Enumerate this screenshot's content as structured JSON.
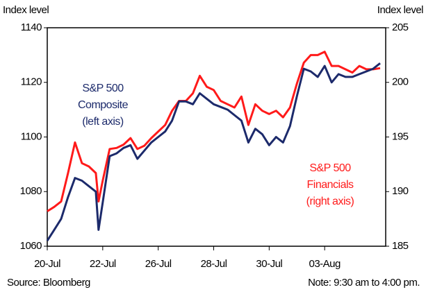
{
  "chart_data": {
    "type": "line",
    "y_label": "Index level",
    "y2_label": "Index level",
    "x": [
      0,
      0.25,
      0.5,
      0.75,
      1.0,
      1.25,
      1.5,
      1.75,
      1.85,
      2.0,
      2.25,
      2.5,
      2.75,
      3.0,
      3.25,
      3.5,
      3.75,
      4.0,
      4.25,
      4.5,
      4.75,
      5.0,
      5.25,
      5.5,
      5.75,
      6.0,
      6.25,
      6.5,
      6.75,
      7.0,
      7.25,
      7.5,
      7.75,
      8.0,
      8.25,
      8.5,
      8.75,
      9.0,
      9.25,
      9.5,
      9.75,
      10.0,
      10.25,
      10.5,
      10.75,
      11.0,
      11.25,
      11.5,
      11.75,
      12.0
    ],
    "xlim": [
      0,
      12.2
    ],
    "xticks": [
      {
        "value": 0,
        "label": "20-Jul"
      },
      {
        "value": 2,
        "label": "22-Jul"
      },
      {
        "value": 4,
        "label": "26-Jul"
      },
      {
        "value": 6,
        "label": "28-Jul"
      },
      {
        "value": 8,
        "label": "30-Jul"
      },
      {
        "value": 10,
        "label": "03-Aug"
      }
    ],
    "ylim": [
      1060,
      1140
    ],
    "yticks": [
      1060,
      1080,
      1100,
      1120,
      1140
    ],
    "y2lim": [
      185,
      205
    ],
    "y2ticks": [
      185,
      190,
      195,
      200,
      205
    ],
    "series": [
      {
        "color": "#1c2a6b",
        "axis": "y",
        "values": [
          1062,
          1066,
          1070,
          1078,
          1085,
          1084,
          1082,
          1080,
          1066,
          1076,
          1093,
          1094,
          1096,
          1097,
          1092,
          1095,
          1098,
          1100,
          1102,
          1106,
          1113,
          1113,
          1112,
          1116,
          1114,
          1112,
          1111,
          1110,
          1108,
          1106,
          1098,
          1103,
          1101,
          1097,
          1100,
          1098,
          1104,
          1115,
          1125,
          1124,
          1122,
          1126,
          1120,
          1123,
          1122,
          1122,
          1123,
          1124,
          1125,
          1127
        ]
      },
      {
        "color": "#ff1a1a",
        "axis": "y2",
        "values": [
          188.2,
          188.6,
          189.1,
          191.7,
          194.5,
          192.6,
          192.3,
          191.7,
          189.1,
          191.0,
          193.9,
          194.0,
          194.3,
          194.9,
          193.9,
          194.2,
          194.9,
          195.5,
          196.1,
          197.4,
          198.3,
          198.3,
          199.0,
          200.6,
          199.6,
          199.3,
          198.3,
          198.0,
          197.7,
          198.7,
          196.1,
          198.0,
          197.4,
          197.1,
          197.4,
          196.8,
          197.7,
          199.9,
          201.8,
          202.5,
          202.5,
          202.8,
          201.5,
          201.5,
          201.2,
          200.9,
          201.5,
          201.2,
          201.2,
          201.3
        ]
      }
    ],
    "annotations": [
      {
        "lines": [
          "S&P 500",
          "Composite",
          "(left axis)"
        ],
        "color": "#1c2a6b"
      },
      {
        "lines": [
          "S&P 500",
          "Financials",
          "(right axis)"
        ],
        "color": "#ff1a1a"
      }
    ],
    "source": "Source: Bloomberg",
    "note": "Note: 9:30 am to 4:00 pm."
  }
}
